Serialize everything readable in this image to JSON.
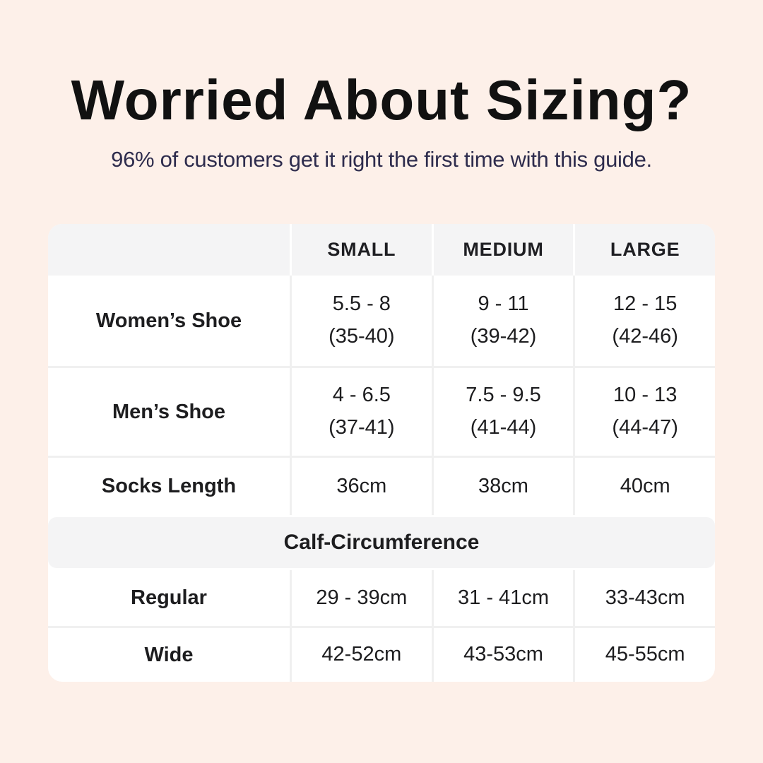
{
  "header": {
    "title": "Worried About Sizing?",
    "subtitle": "96% of customers get it right the first time with this guide."
  },
  "table": {
    "col_small": "SMALL",
    "col_medium": "MEDIUM",
    "col_large": "LARGE",
    "rows": [
      {
        "label": "Women’s Shoe",
        "cells": [
          [
            "5.5 - 8",
            "(35-40)"
          ],
          [
            "9 - 11",
            "(39-42)"
          ],
          [
            "12 - 15",
            "(42-46)"
          ]
        ]
      },
      {
        "label": "Men’s Shoe",
        "cells": [
          [
            "4 - 6.5",
            "(37-41)"
          ],
          [
            "7.5 - 9.5",
            "(41-44)"
          ],
          [
            "10 - 13",
            "(44-47)"
          ]
        ]
      },
      {
        "label": "Socks Length",
        "cells": [
          [
            "36cm"
          ],
          [
            "38cm"
          ],
          [
            "40cm"
          ]
        ]
      }
    ],
    "band_label": "Calf-Circumference",
    "calf_rows": [
      {
        "label": "Regular",
        "cells": [
          [
            "29 - 39cm"
          ],
          [
            "31 - 41cm"
          ],
          [
            "33-43cm"
          ]
        ]
      },
      {
        "label": "Wide",
        "cells": [
          [
            "42-52cm"
          ],
          [
            "43-53cm"
          ],
          [
            "45-55cm"
          ]
        ]
      }
    ]
  },
  "colors": {
    "page_background": "#fdf0e9",
    "table_background": "#ffffff",
    "header_band_gray": "#f4f4f5",
    "divider_gray": "#f0f0f0",
    "title_text": "#111111",
    "subtitle_text": "#2e2c4d",
    "table_text": "#1d1d1f"
  },
  "chart_data": {
    "type": "table",
    "title": "Worried About Sizing?",
    "subtitle": "96% of customers get it right the first time with this guide.",
    "columns": [
      "",
      "SMALL",
      "MEDIUM",
      "LARGE"
    ],
    "rows": [
      [
        "Women’s Shoe",
        "5.5 - 8 (35-40)",
        "9 - 11 (39-42)",
        "12 - 15 (42-46)"
      ],
      [
        "Men’s Shoe",
        "4 - 6.5 (37-41)",
        "7.5 - 9.5 (41-44)",
        "10 - 13 (44-47)"
      ],
      [
        "Socks Length",
        "36cm",
        "38cm",
        "40cm"
      ],
      [
        "Calf-Circumference (section)",
        "",
        "",
        ""
      ],
      [
        "Regular",
        "29 - 39cm",
        "31 - 41cm",
        "33-43cm"
      ],
      [
        "Wide",
        "42-52cm",
        "43-53cm",
        "45-55cm"
      ]
    ],
    "layout": {
      "section_band_after_row": 3,
      "first_column_bold": true,
      "header_background": "#f4f4f5"
    }
  }
}
